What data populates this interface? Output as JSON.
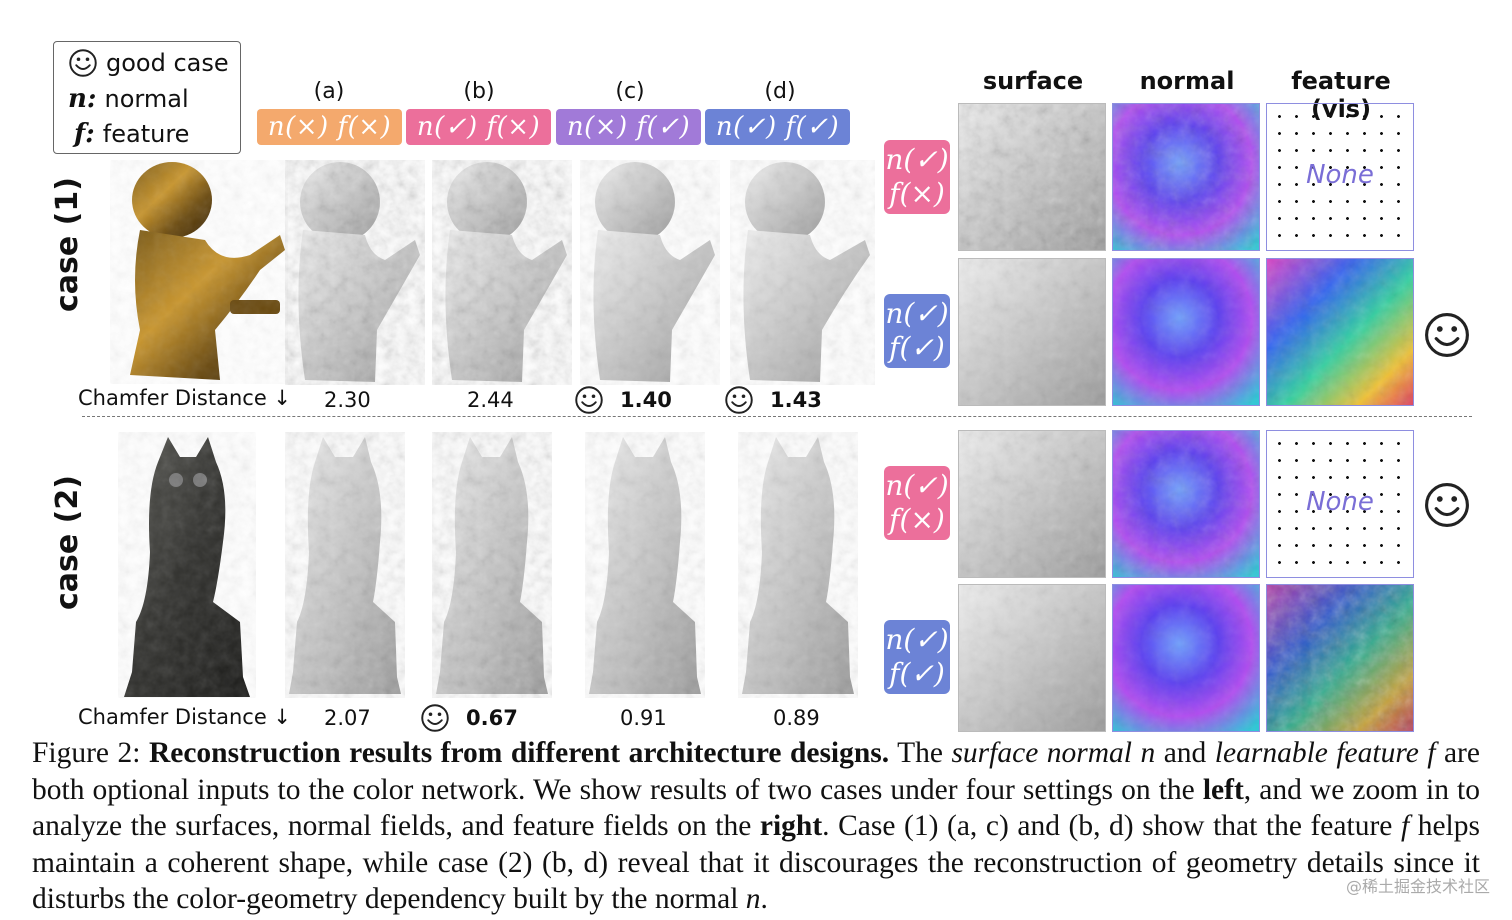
{
  "legend": {
    "good_case": "good case",
    "normal_symbol": "n:",
    "normal_label": "normal",
    "feature_symbol": "f:",
    "feature_label": "feature"
  },
  "columns": [
    {
      "letter": "(a)",
      "setting": "n(×)  f(×)",
      "color": "#f4a96d"
    },
    {
      "letter": "(b)",
      "setting": "n(✓)  f(×)",
      "color": "#ec6f9b"
    },
    {
      "letter": "(c)",
      "setting": "n(×)  f(✓)",
      "color": "#a17ad8"
    },
    {
      "letter": "(d)",
      "setting": "n(✓)  f(✓)",
      "color": "#6c83d6"
    }
  ],
  "cases": [
    {
      "label": "case (1)",
      "metric_label": "Chamfer Distance ↓",
      "values": [
        "2.30",
        "2.44",
        "1.40",
        "1.43"
      ],
      "good": [
        false,
        false,
        true,
        true
      ]
    },
    {
      "label": "case (2)",
      "metric_label": "Chamfer Distance ↓",
      "values": [
        "2.07",
        "0.67",
        "0.91",
        "0.89"
      ],
      "good": [
        false,
        true,
        false,
        false
      ]
    }
  ],
  "right_panel": {
    "headers": [
      "surface",
      "normal",
      "feature (vis)"
    ],
    "rows": [
      {
        "n": "n(✓)",
        "f": "f(×)",
        "feature": "None",
        "good": false,
        "color": "#ec6f9b"
      },
      {
        "n": "n(✓)",
        "f": "f(✓)",
        "feature": "",
        "good": true,
        "color": "#6c83d6"
      },
      {
        "n": "n(✓)",
        "f": "f(×)",
        "feature": "None",
        "good": true,
        "color": "#ec6f9b"
      },
      {
        "n": "n(✓)",
        "f": "f(✓)",
        "feature": "",
        "good": false,
        "color": "#6c83d6"
      }
    ]
  },
  "caption": {
    "prefix": "Figure 2: ",
    "title": "Reconstruction results from different architecture designs.",
    "t1": " The ",
    "i1": "surface normal n",
    "t2": " and ",
    "i2": "learnable feature f",
    "t3": " are both optional inputs to the color network. We show results of two cases under four settings on the ",
    "b1": "left",
    "t4": ", and we zoom in to analyze the surfaces, normal fields, and feature fields on the ",
    "b2": "right",
    "t5": ". Case (1) (a, c) and (b, d) show that the feature ",
    "i3": "f",
    "t6": " helps maintain a coherent shape, while case (2) (b, d) reveal that it discourages the reconstruction of geometry details since it disturbs the color-geometry dependency built by the normal ",
    "i4": "n",
    "t7": "."
  },
  "watermark": "@稀土掘金技术社区"
}
